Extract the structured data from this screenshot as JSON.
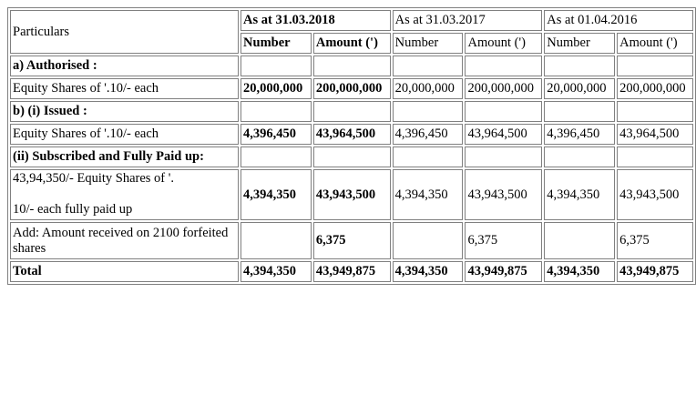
{
  "header": {
    "particulars": "Particulars",
    "period_2018": "As at 31.03.2018",
    "period_2017": "As at 31.03.2017",
    "period_2016": "As at 01.04.2016",
    "number": "Number",
    "amount": "Amount (')"
  },
  "rows": {
    "authorised_head": "a) Authorised :",
    "authorised": {
      "label": "Equity Shares of '.10/- each",
      "n2018": "20,000,000",
      "a2018": "200,000,000",
      "n2017": "20,000,000",
      "a2017": "200,000,000",
      "n2016": "20,000,000",
      "a2016": "200,000,000"
    },
    "issued_head": "b) (i) Issued :",
    "issued": {
      "label": "Equity Shares of '.10/- each",
      "n2018": "4,396,450",
      "a2018": "43,964,500",
      "n2017": "4,396,450",
      "a2017": "43,964,500",
      "n2016": "4,396,450",
      "a2016": "43,964,500"
    },
    "subscribed_head": "(ii) Subscribed and Fully Paid up:",
    "subscribed": {
      "label_line1": "43,94,350/- Equity Shares of '.",
      "label_line2": "10/- each fully paid up",
      "n2018": "4,394,350",
      "a2018": "43,943,500",
      "n2017": "4,394,350",
      "a2017": "43,943,500",
      "n2016": "4,394,350",
      "a2016": "43,943,500"
    },
    "forfeited": {
      "label": "Add: Amount received on 2100 forfeited shares",
      "a2018": "6,375",
      "a2017": "6,375",
      "a2016": "6,375"
    },
    "total": {
      "label": "Total",
      "n2018": "4,394,350",
      "a2018": "43,949,875",
      "n2017": "4,394,350",
      "a2017": "43,949,875",
      "n2016": "4,394,350",
      "a2016": "43,949,875"
    }
  }
}
